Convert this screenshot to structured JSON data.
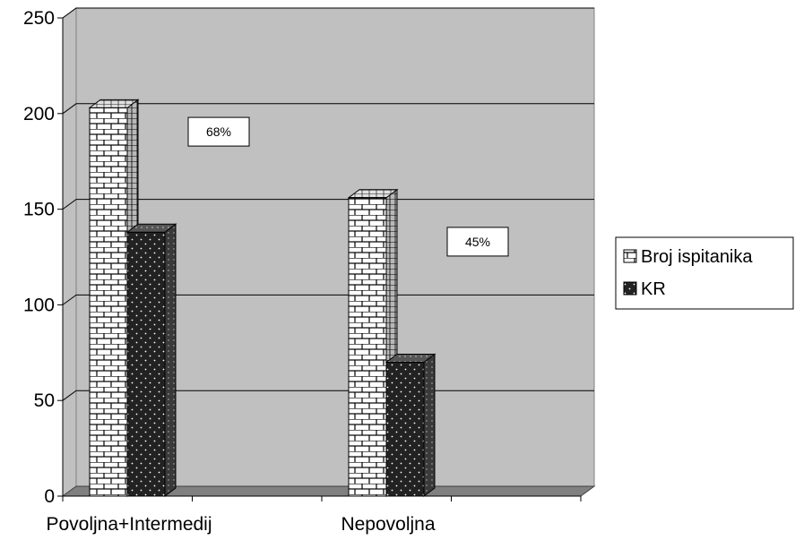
{
  "chart_data": {
    "type": "bar",
    "categories": [
      "Povoljna+Intermedij",
      "Nepovoljna"
    ],
    "series": [
      {
        "name": "Broj ispitanika",
        "values": [
          203,
          156
        ]
      },
      {
        "name": "KR",
        "values": [
          138,
          70
        ]
      }
    ],
    "annotations": [
      "68%",
      "45%"
    ],
    "ylim": [
      0,
      250
    ],
    "yticks": [
      0,
      50,
      100,
      150,
      200,
      250
    ],
    "grid": true,
    "legend": "right",
    "colors": {
      "plot_wall": "#c0c0c0",
      "floor": "#808080",
      "series_fill": [
        "#ffffff",
        "#202020"
      ]
    }
  }
}
